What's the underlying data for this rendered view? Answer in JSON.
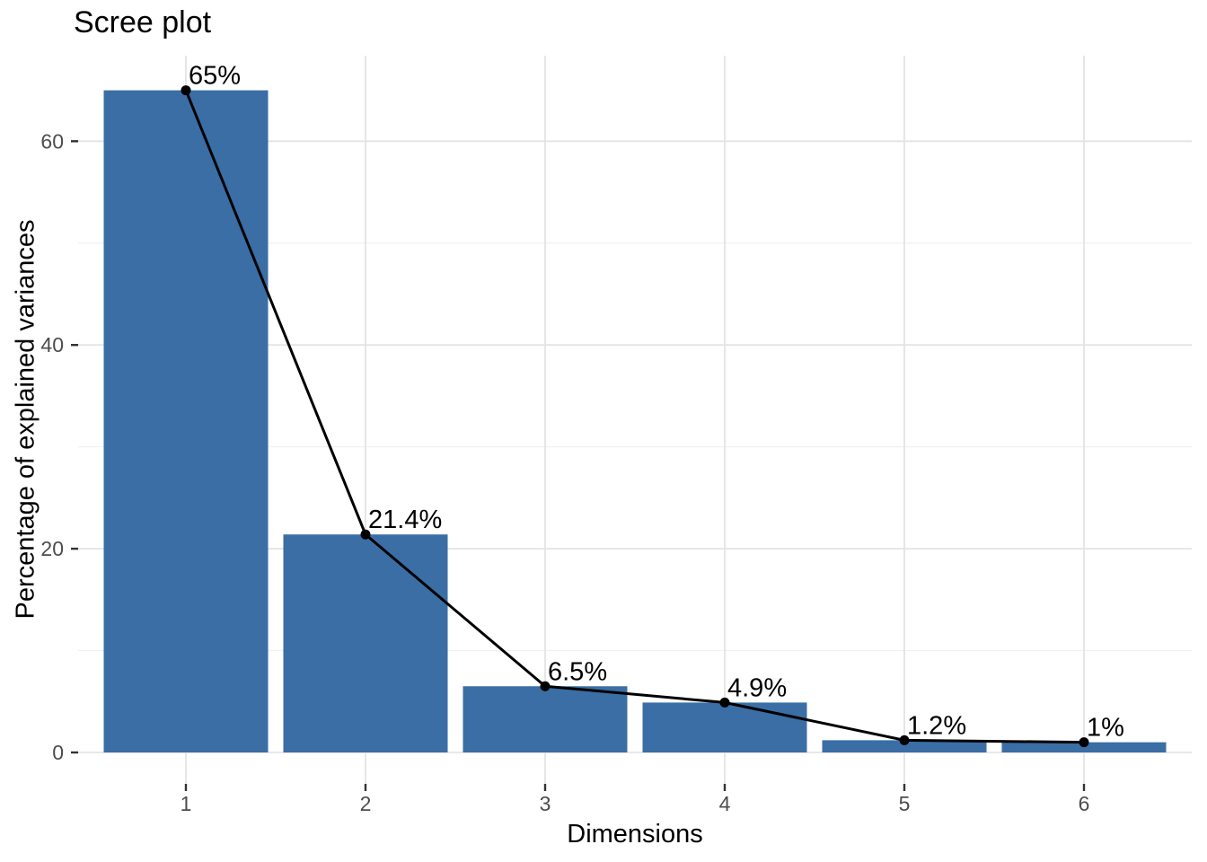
{
  "chart_data": {
    "type": "bar",
    "overlay": "line+point",
    "title": "Scree plot",
    "xlabel": "Dimensions",
    "ylabel": "Percentage of explained variances",
    "categories": [
      "1",
      "2",
      "3",
      "4",
      "5",
      "6"
    ],
    "values": [
      65,
      21.4,
      6.5,
      4.9,
      1.2,
      1
    ],
    "point_labels": [
      "65%",
      "21.4%",
      "6.5%",
      "4.9%",
      "1.2%",
      "1%"
    ],
    "y_ticks": [
      0,
      20,
      40,
      60
    ],
    "y_minor_ticks": [
      10,
      30,
      50
    ],
    "ylim": [
      -3.25,
      68.25
    ],
    "grid": "on",
    "legend": "none",
    "colors": {
      "bar_fill": "#3A6EA5",
      "line": "#000000",
      "point": "#000000",
      "data_label": "#000000",
      "grid_major": "#E4E4E4",
      "grid_minor": "#F1F1F1",
      "axis_tick": "#333333",
      "tick_label": "#4D4D4D",
      "axis_title": "#000000",
      "title": "#000000",
      "background": "#FFFFFF"
    }
  }
}
